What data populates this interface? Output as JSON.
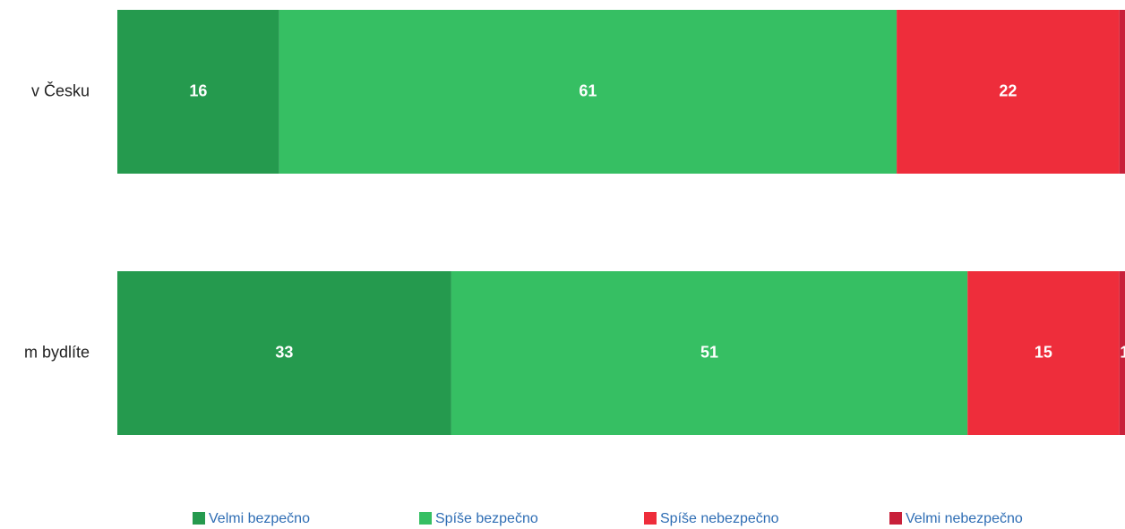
{
  "chart_data": {
    "type": "stacked-bar-horizontal",
    "categories": [
      "v Česku",
      "m bydlíte"
    ],
    "series": [
      {
        "name": "Velmi bezpečno",
        "color": "#259a4e",
        "values": [
          16,
          33
        ]
      },
      {
        "name": "Spíše bezpečno",
        "color": "#36bf63",
        "values": [
          61,
          51
        ]
      },
      {
        "name": "Spíše nebezpečno",
        "color": "#ee2d3b",
        "values": [
          22,
          15
        ]
      },
      {
        "name": "Velmi nebezpečno",
        "color": "#c8203a",
        "values": [
          2,
          1
        ]
      }
    ],
    "legend": "bottom"
  }
}
